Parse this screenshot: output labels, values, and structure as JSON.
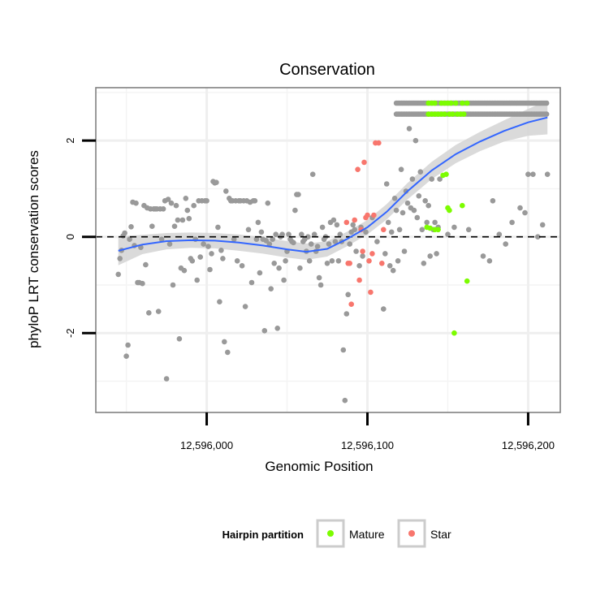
{
  "chart_data": {
    "type": "scatter",
    "title": "Conservation",
    "xlabel": "Genomic Position",
    "ylabel": "phyloP LRT conservation scores",
    "xlim": [
      12595931,
      12596220
    ],
    "ylim": [
      -3.65,
      3.1
    ],
    "x_ticks": [
      {
        "value": 12596000,
        "label": "12,596,000"
      },
      {
        "value": 12596100,
        "label": "12,596,100"
      },
      {
        "value": 12596200,
        "label": "12,596,200"
      }
    ],
    "y_ticks": [
      {
        "value": -2,
        "label": "-2"
      },
      {
        "value": 0,
        "label": "0"
      },
      {
        "value": 2,
        "label": "2"
      }
    ],
    "minor_x_grid": [
      12595950,
      12596050,
      12596150
    ],
    "minor_y_grid": [
      -3,
      -1,
      1,
      3
    ],
    "reference_line": {
      "y": 0,
      "style": "dashed"
    },
    "legend": {
      "position": "bottom",
      "title": "Hairpin partition",
      "entries": [
        {
          "label": "Mature",
          "color": "#7cfc00"
        },
        {
          "label": "Star",
          "color": "#f8766d"
        }
      ]
    },
    "colors": {
      "other": "#999999",
      "mature": "#7cfc00",
      "star": "#f8766d",
      "smooth": "#3366ff",
      "band": "#d3d3d3"
    },
    "smooth": {
      "x": [
        12595945,
        12595960,
        12595975,
        12595990,
        12596005,
        12596020,
        12596035,
        12596050,
        12596062,
        12596075,
        12596087,
        12596100,
        12596112,
        12596125,
        12596140,
        12596155,
        12596170,
        12596185,
        12596200,
        12596212
      ],
      "y": [
        -0.29,
        -0.16,
        -0.09,
        -0.07,
        -0.08,
        -0.12,
        -0.18,
        -0.26,
        -0.31,
        -0.25,
        -0.05,
        0.2,
        0.52,
        0.95,
        1.38,
        1.72,
        1.98,
        2.2,
        2.38,
        2.48
      ],
      "se": [
        0.3,
        0.2,
        0.17,
        0.16,
        0.16,
        0.17,
        0.17,
        0.17,
        0.17,
        0.16,
        0.15,
        0.15,
        0.16,
        0.17,
        0.18,
        0.19,
        0.2,
        0.22,
        0.28,
        0.35
      ]
    },
    "series": [
      {
        "name": "Other",
        "color": "#999999",
        "points": [
          [
            12595945,
            -0.78
          ],
          [
            12595946,
            -0.45
          ],
          [
            12595947,
            -0.28
          ],
          [
            12595948,
            0.02
          ],
          [
            12595949,
            0.08
          ],
          [
            12595950,
            -2.48
          ],
          [
            12595951,
            -2.25
          ],
          [
            12595952,
            -0.05
          ],
          [
            12595953,
            0.21
          ],
          [
            12595954,
            0.72
          ],
          [
            12595955,
            -0.18
          ],
          [
            12595956,
            0.7
          ],
          [
            12595957,
            -0.95
          ],
          [
            12595958,
            -0.95
          ],
          [
            12595959,
            -0.22
          ],
          [
            12595960,
            -0.97
          ],
          [
            12595961,
            0.65
          ],
          [
            12595962,
            -0.58
          ],
          [
            12595963,
            0.6
          ],
          [
            12595964,
            -1.58
          ],
          [
            12595965,
            0.58
          ],
          [
            12595966,
            0.22
          ],
          [
            12595967,
            0.58
          ],
          [
            12595968,
            0.58
          ],
          [
            12595969,
            0.58
          ],
          [
            12595970,
            -1.55
          ],
          [
            12595971,
            0.58
          ],
          [
            12595972,
            -0.05
          ],
          [
            12595973,
            0.58
          ],
          [
            12595974,
            0.75
          ],
          [
            12595975,
            -2.95
          ],
          [
            12595976,
            0.78
          ],
          [
            12595977,
            -0.15
          ],
          [
            12595978,
            0.7
          ],
          [
            12595979,
            -1.0
          ],
          [
            12595980,
            0.22
          ],
          [
            12595981,
            0.65
          ],
          [
            12595982,
            0.35
          ],
          [
            12595983,
            -2.12
          ],
          [
            12595984,
            -0.65
          ],
          [
            12595985,
            0.35
          ],
          [
            12595986,
            -0.7
          ],
          [
            12595987,
            0.8
          ],
          [
            12595988,
            0.55
          ],
          [
            12595989,
            0.38
          ],
          [
            12595990,
            -0.45
          ],
          [
            12595991,
            -0.5
          ],
          [
            12595992,
            0.65
          ],
          [
            12595993,
            -0.05
          ],
          [
            12595994,
            -0.9
          ],
          [
            12595995,
            0.75
          ],
          [
            12595996,
            -0.42
          ],
          [
            12595997,
            0.75
          ],
          [
            12595998,
            -0.15
          ],
          [
            12595999,
            0.75
          ],
          [
            12596000,
            0.75
          ],
          [
            12596001,
            -0.2
          ],
          [
            12596002,
            -0.68
          ],
          [
            12596003,
            -0.35
          ],
          [
            12596004,
            1.15
          ],
          [
            12596005,
            1.12
          ],
          [
            12596006,
            1.13
          ],
          [
            12596007,
            0.2
          ],
          [
            12596008,
            -1.35
          ],
          [
            12596009,
            -0.28
          ],
          [
            12596010,
            -0.45
          ],
          [
            12596011,
            -2.18
          ],
          [
            12596012,
            0.95
          ],
          [
            12596013,
            -2.4
          ],
          [
            12596014,
            0.8
          ],
          [
            12596015,
            0.75
          ],
          [
            12596016,
            0.75
          ],
          [
            12596017,
            -0.05
          ],
          [
            12596018,
            0.75
          ],
          [
            12596019,
            -0.5
          ],
          [
            12596020,
            0.75
          ],
          [
            12596021,
            0.75
          ],
          [
            12596022,
            -0.6
          ],
          [
            12596023,
            0.75
          ],
          [
            12596024,
            -1.45
          ],
          [
            12596025,
            0.75
          ],
          [
            12596026,
            0.15
          ],
          [
            12596027,
            0.72
          ],
          [
            12596028,
            -0.95
          ],
          [
            12596029,
            0.75
          ],
          [
            12596030,
            0.75
          ],
          [
            12596031,
            -0.05
          ],
          [
            12596032,
            0.3
          ],
          [
            12596033,
            -0.75
          ],
          [
            12596034,
            0.1
          ],
          [
            12596035,
            -0.05
          ],
          [
            12596036,
            -1.95
          ],
          [
            12596037,
            -0.08
          ],
          [
            12596038,
            0.7
          ],
          [
            12596039,
            -0.15
          ],
          [
            12596040,
            -1.08
          ],
          [
            12596041,
            -0.05
          ],
          [
            12596042,
            -0.55
          ],
          [
            12596043,
            0.05
          ],
          [
            12596044,
            -1.9
          ],
          [
            12596045,
            -0.65
          ],
          [
            12596046,
            0.0
          ],
          [
            12596047,
            0.05
          ],
          [
            12596048,
            -0.9
          ],
          [
            12596049,
            -0.5
          ],
          [
            12596050,
            -0.3
          ],
          [
            12596051,
            0.05
          ],
          [
            12596052,
            -0.05
          ],
          [
            12596053,
            -0.1
          ],
          [
            12596054,
            -0.12
          ],
          [
            12596055,
            0.55
          ],
          [
            12596056,
            0.88
          ],
          [
            12596057,
            0.88
          ],
          [
            12596058,
            -0.65
          ],
          [
            12596059,
            0.05
          ],
          [
            12596060,
            -0.1
          ],
          [
            12596061,
            -0.05
          ],
          [
            12596062,
            -0.3
          ],
          [
            12596063,
            0.0
          ],
          [
            12596064,
            -0.5
          ],
          [
            12596065,
            -0.15
          ],
          [
            12596066,
            1.3
          ],
          [
            12596067,
            0.05
          ],
          [
            12596068,
            -0.3
          ],
          [
            12596069,
            -0.2
          ],
          [
            12596070,
            -0.85
          ],
          [
            12596071,
            -1.0
          ],
          [
            12596072,
            0.2
          ],
          [
            12596073,
            -0.05
          ],
          [
            12596074,
            0.0
          ],
          [
            12596075,
            -0.55
          ],
          [
            12596076,
            -0.15
          ],
          [
            12596077,
            0.3
          ],
          [
            12596078,
            -0.5
          ],
          [
            12596079,
            0.35
          ],
          [
            12596080,
            -0.1
          ],
          [
            12596081,
            0.25
          ],
          [
            12596082,
            -0.5
          ],
          [
            12596083,
            0.05
          ],
          [
            12596084,
            -0.1
          ],
          [
            12596085,
            -2.35
          ],
          [
            12596086,
            -3.4
          ],
          [
            12596087,
            -1.6
          ],
          [
            12596088,
            -1.2
          ],
          [
            12596089,
            -0.15
          ],
          [
            12596090,
            0.1
          ],
          [
            12596091,
            0.25
          ],
          [
            12596092,
            0.15
          ],
          [
            12596093,
            -0.3
          ],
          [
            12596095,
            -0.6
          ],
          [
            12596096,
            0.2
          ],
          [
            12596097,
            -0.4
          ],
          [
            12596099,
            0.1
          ],
          [
            12596103,
            0.4
          ],
          [
            12596106,
            -0.1
          ],
          [
            12596110,
            -1.5
          ],
          [
            12596111,
            -0.35
          ],
          [
            12596112,
            1.1
          ],
          [
            12596113,
            0.3
          ],
          [
            12596114,
            -0.6
          ],
          [
            12596115,
            0.1
          ],
          [
            12596116,
            -0.7
          ],
          [
            12596117,
            0.8
          ],
          [
            12596118,
            0.55
          ],
          [
            12596119,
            -0.5
          ],
          [
            12596120,
            0.15
          ],
          [
            12596121,
            1.4
          ],
          [
            12596122,
            0.5
          ],
          [
            12596123,
            -0.3
          ],
          [
            12596124,
            0.95
          ],
          [
            12596125,
            0.7
          ],
          [
            12596126,
            2.25
          ],
          [
            12596127,
            0.6
          ],
          [
            12596128,
            1.2
          ],
          [
            12596129,
            0.55
          ],
          [
            12596130,
            2.0
          ],
          [
            12596131,
            0.4
          ],
          [
            12596132,
            0.85
          ],
          [
            12596133,
            1.35
          ],
          [
            12596134,
            0.15
          ],
          [
            12596135,
            -0.55
          ],
          [
            12596136,
            0.75
          ],
          [
            12596137,
            0.3
          ],
          [
            12596138,
            0.65
          ],
          [
            12596139,
            -0.4
          ],
          [
            12596140,
            1.2
          ],
          [
            12596141,
            0.15
          ],
          [
            12596142,
            0.3
          ],
          [
            12596143,
            -0.35
          ],
          [
            12596144,
            0.2
          ],
          [
            12596145,
            1.2
          ],
          [
            12596150,
            0.05
          ],
          [
            12596154,
            0.2
          ],
          [
            12596163,
            0.15
          ],
          [
            12596172,
            -0.4
          ],
          [
            12596176,
            -0.5
          ],
          [
            12596178,
            0.75
          ],
          [
            12596182,
            0.05
          ],
          [
            12596186,
            -0.15
          ],
          [
            12596190,
            0.3
          ],
          [
            12596195,
            0.6
          ],
          [
            12596198,
            0.5
          ],
          [
            12596200,
            1.3
          ],
          [
            12596203,
            1.3
          ],
          [
            12596206,
            0.0
          ],
          [
            12596209,
            0.25
          ],
          [
            12596212,
            1.3
          ]
        ],
        "bands": [
          {
            "x_start": 12596118,
            "x_end": 12596212,
            "step": 1.05,
            "y": 2.78
          },
          {
            "x_start": 12596118,
            "x_end": 12596212,
            "step": 1.05,
            "y": 2.55
          }
        ]
      },
      {
        "name": "Mature",
        "color": "#7cfc00",
        "points": [
          [
            12596137,
            0.2
          ],
          [
            12596139,
            0.18
          ],
          [
            12596142,
            0.15
          ],
          [
            12596144,
            0.15
          ],
          [
            12596147,
            1.28
          ],
          [
            12596149,
            1.3
          ],
          [
            12596150,
            0.6
          ],
          [
            12596151,
            0.55
          ],
          [
            12596154,
            -2.0
          ],
          [
            12596159,
            0.65
          ],
          [
            12596162,
            -0.92
          ],
          [
            12596138,
            2.78
          ],
          [
            12596140,
            2.78
          ],
          [
            12596142,
            2.78
          ],
          [
            12596146,
            2.78
          ],
          [
            12596148,
            2.78
          ],
          [
            12596150,
            2.78
          ],
          [
            12596152,
            2.78
          ],
          [
            12596155,
            2.78
          ],
          [
            12596159,
            2.78
          ],
          [
            12596162,
            2.78
          ],
          [
            12596138,
            2.55
          ],
          [
            12596140,
            2.55
          ],
          [
            12596142,
            2.55
          ],
          [
            12596144,
            2.55
          ],
          [
            12596146,
            2.55
          ],
          [
            12596148,
            2.55
          ],
          [
            12596151,
            2.55
          ],
          [
            12596153,
            2.55
          ],
          [
            12596156,
            2.55
          ],
          [
            12596158,
            2.55
          ],
          [
            12596160,
            2.55
          ]
        ]
      },
      {
        "name": "Star",
        "color": "#f8766d",
        "points": [
          [
            12596088,
            -0.55
          ],
          [
            12596089,
            -0.55
          ],
          [
            12596090,
            -1.4
          ],
          [
            12596092,
            0.35
          ],
          [
            12596094,
            1.4
          ],
          [
            12596095,
            -0.9
          ],
          [
            12596096,
            0.15
          ],
          [
            12596097,
            -0.3
          ],
          [
            12596098,
            1.55
          ],
          [
            12596099,
            0.4
          ],
          [
            12596100,
            0.45
          ],
          [
            12596101,
            -0.5
          ],
          [
            12596102,
            -1.15
          ],
          [
            12596103,
            -0.35
          ],
          [
            12596104,
            0.45
          ],
          [
            12596105,
            1.95
          ],
          [
            12596107,
            1.95
          ],
          [
            12596109,
            -0.55
          ],
          [
            12596110,
            0.15
          ],
          [
            12596087,
            0.3
          ]
        ]
      }
    ]
  }
}
